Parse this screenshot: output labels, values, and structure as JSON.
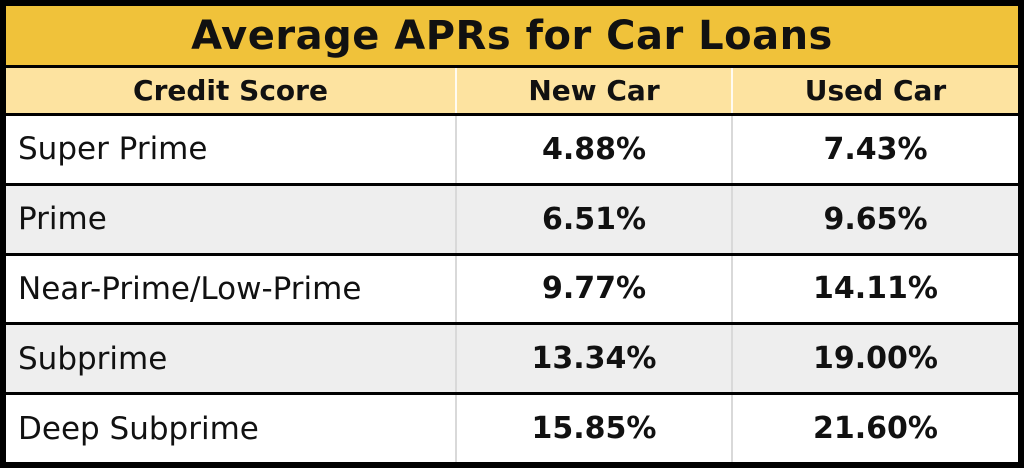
{
  "colors": {
    "title_bg": "#F0C23A",
    "header_bg": "#FDE3A0",
    "row_alt_bg": "#EEEEEE",
    "border": "#000000"
  },
  "chart_data": {
    "type": "table",
    "title": "Average APRs for Car Loans",
    "columns": [
      "Credit Score",
      "New Car",
      "Used Car"
    ],
    "rows": [
      [
        "Super Prime",
        "4.88%",
        "7.43%"
      ],
      [
        "Prime",
        "6.51%",
        "9.65%"
      ],
      [
        "Near-Prime/Low-Prime",
        "9.77%",
        "14.11%"
      ],
      [
        "Subprime",
        "13.34%",
        "19.00%"
      ],
      [
        "Deep Subprime",
        "15.85%",
        "21.60%"
      ]
    ],
    "values_numeric": {
      "new_car_apr_pct": [
        4.88,
        6.51,
        9.77,
        13.34,
        15.85
      ],
      "used_car_apr_pct": [
        7.43,
        9.65,
        14.11,
        19.0,
        21.6
      ]
    },
    "layout": {
      "row_striping": "white / light-gray alternating",
      "header_alignment": "center",
      "label_alignment": "left",
      "value_alignment": "center"
    }
  }
}
